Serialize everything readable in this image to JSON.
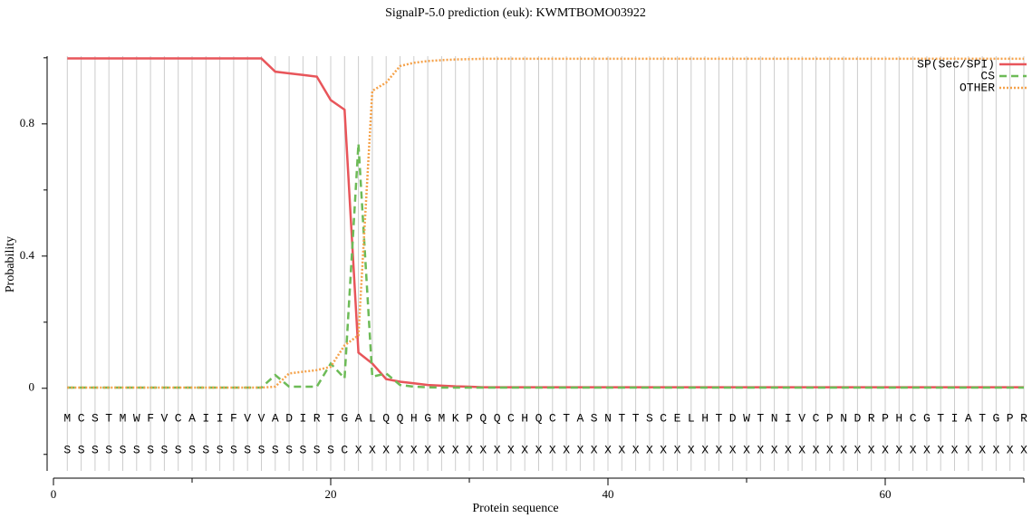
{
  "chart_data": {
    "type": "line",
    "title": "SignalP-5.0 prediction (euk):  KWMTBOMO03922",
    "xlabel": "Protein sequence",
    "ylabel": "Probability",
    "x": [
      1,
      2,
      3,
      4,
      5,
      6,
      7,
      8,
      9,
      10,
      11,
      12,
      13,
      14,
      15,
      16,
      17,
      18,
      19,
      20,
      21,
      22,
      23,
      24,
      25,
      26,
      27,
      28,
      29,
      30,
      31,
      32,
      33,
      34,
      35,
      36,
      37,
      38,
      39,
      40,
      41,
      42,
      43,
      44,
      45,
      46,
      47,
      48,
      49,
      50,
      51,
      52,
      53,
      54,
      55,
      56,
      57,
      58,
      59,
      60,
      61,
      62,
      63,
      64,
      65,
      66,
      67,
      68,
      69,
      70
    ],
    "series": [
      {
        "name": "SP(Sec/SPI)",
        "color": "#e8555a",
        "style": "solid",
        "values": [
          0.998,
          0.998,
          0.998,
          0.998,
          0.998,
          0.998,
          0.998,
          0.998,
          0.998,
          0.998,
          0.998,
          0.998,
          0.998,
          0.998,
          0.998,
          0.958,
          0.953,
          0.948,
          0.943,
          0.872,
          0.843,
          0.108,
          0.075,
          0.028,
          0.02,
          0.015,
          0.01,
          0.008,
          0.006,
          0.005,
          0.003,
          0.003,
          0.003,
          0.003,
          0.003,
          0.003,
          0.003,
          0.003,
          0.003,
          0.003,
          0.003,
          0.003,
          0.003,
          0.003,
          0.003,
          0.003,
          0.003,
          0.003,
          0.003,
          0.003,
          0.003,
          0.003,
          0.003,
          0.003,
          0.003,
          0.003,
          0.003,
          0.003,
          0.003,
          0.003,
          0.003,
          0.003,
          0.003,
          0.003,
          0.003,
          0.003,
          0.003,
          0.003,
          0.003,
          0.003
        ]
      },
      {
        "name": "CS",
        "color": "#6dbb57",
        "style": "dashed",
        "values": [
          0.002,
          0.002,
          0.002,
          0.002,
          0.002,
          0.002,
          0.002,
          0.002,
          0.002,
          0.002,
          0.002,
          0.002,
          0.002,
          0.002,
          0.002,
          0.04,
          0.005,
          0.005,
          0.005,
          0.075,
          0.03,
          0.74,
          0.035,
          0.045,
          0.01,
          0.005,
          0.003,
          0.002,
          0.002,
          0.002,
          0.002,
          0.002,
          0.002,
          0.002,
          0.002,
          0.002,
          0.002,
          0.002,
          0.002,
          0.002,
          0.002,
          0.002,
          0.002,
          0.002,
          0.002,
          0.002,
          0.002,
          0.002,
          0.002,
          0.002,
          0.002,
          0.002,
          0.002,
          0.002,
          0.002,
          0.002,
          0.002,
          0.002,
          0.002,
          0.002,
          0.002,
          0.002,
          0.002,
          0.002,
          0.002,
          0.002,
          0.002,
          0.002,
          0.002,
          0.002
        ]
      },
      {
        "name": "OTHER",
        "color": "#f5a24a",
        "style": "dotted",
        "values": [
          0.002,
          0.002,
          0.002,
          0.002,
          0.002,
          0.002,
          0.002,
          0.002,
          0.002,
          0.002,
          0.002,
          0.002,
          0.002,
          0.002,
          0.002,
          0.005,
          0.045,
          0.05,
          0.055,
          0.065,
          0.13,
          0.16,
          0.9,
          0.925,
          0.975,
          0.985,
          0.99,
          0.993,
          0.995,
          0.996,
          0.997,
          0.997,
          0.997,
          0.997,
          0.997,
          0.997,
          0.997,
          0.997,
          0.997,
          0.997,
          0.997,
          0.997,
          0.997,
          0.997,
          0.997,
          0.997,
          0.997,
          0.997,
          0.997,
          0.997,
          0.997,
          0.997,
          0.997,
          0.997,
          0.997,
          0.997,
          0.997,
          0.997,
          0.997,
          0.997,
          0.997,
          0.997,
          0.997,
          0.997,
          0.997,
          0.997,
          0.997,
          0.997,
          0.997,
          0.997
        ]
      }
    ],
    "sequence": [
      "M",
      "C",
      "S",
      "T",
      "M",
      "W",
      "F",
      "V",
      "C",
      "A",
      "I",
      "I",
      "F",
      "V",
      "V",
      "A",
      "D",
      "I",
      "R",
      "T",
      "G",
      "A",
      "L",
      "Q",
      "Q",
      "H",
      "G",
      "M",
      "K",
      "P",
      "Q",
      "Q",
      "C",
      "H",
      "Q",
      "C",
      "T",
      "A",
      "S",
      "N",
      "T",
      "T",
      "S",
      "C",
      "E",
      "L",
      "H",
      "T",
      "D",
      "W",
      "T",
      "N",
      "I",
      "V",
      "C",
      "P",
      "N",
      "D",
      "R",
      "P",
      "H",
      "C",
      "G",
      "T",
      "I",
      "A",
      "T",
      "G",
      "P",
      "R"
    ],
    "labels": [
      "S",
      "S",
      "S",
      "S",
      "S",
      "S",
      "S",
      "S",
      "S",
      "S",
      "S",
      "S",
      "S",
      "S",
      "S",
      "S",
      "S",
      "S",
      "S",
      "S",
      "C",
      "X",
      "X",
      "X",
      "X",
      "X",
      "X",
      "X",
      "X",
      "X",
      "X",
      "X",
      "X",
      "X",
      "X",
      "X",
      "X",
      "X",
      "X",
      "X",
      "X",
      "X",
      "X",
      "X",
      "X",
      "X",
      "X",
      "X",
      "X",
      "X",
      "X",
      "X",
      "X",
      "X",
      "X",
      "X",
      "X",
      "X",
      "X",
      "X",
      "X",
      "X",
      "X",
      "X",
      "X",
      "X",
      "X",
      "X",
      "X",
      "X"
    ],
    "xlim": [
      0,
      70
    ],
    "xticks": [
      0,
      20,
      40,
      60
    ],
    "xticks_minor": [
      10,
      30,
      50,
      70
    ],
    "ylim": [
      -0.25,
      1.005
    ],
    "yticks": [
      0,
      0.4,
      0.8
    ],
    "yticks_minor": [
      -0.2,
      0.2,
      0.6,
      1
    ],
    "grid": true,
    "legend": "upper right"
  }
}
